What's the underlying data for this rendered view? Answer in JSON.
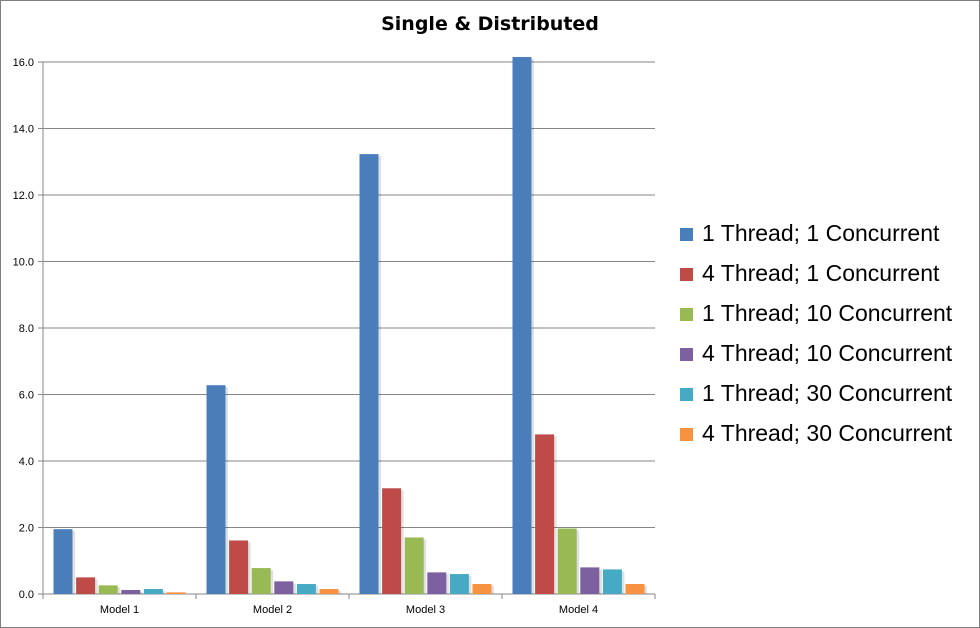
{
  "chart_data": {
    "type": "bar",
    "title": "Single & Distributed",
    "xlabel": "",
    "ylabel": "",
    "categories": [
      "Model 1",
      "Model 2",
      "Model 3",
      "Model 4"
    ],
    "series": [
      {
        "name": "1 Thread; 1 Concurrent",
        "color": "#4a7ebb",
        "values": [
          1.95,
          6.28,
          13.23,
          16.15
        ]
      },
      {
        "name": "4 Thread; 1 Concurrent",
        "color": "#be4b48",
        "values": [
          0.5,
          1.61,
          3.18,
          4.8
        ]
      },
      {
        "name": "1 Thread; 10 Concurrent",
        "color": "#98b954",
        "values": [
          0.26,
          0.78,
          1.7,
          1.97
        ]
      },
      {
        "name": "4 Thread; 10 Concurrent",
        "color": "#7d60a0",
        "values": [
          0.12,
          0.38,
          0.65,
          0.8
        ]
      },
      {
        "name": "1 Thread; 30 Concurrent",
        "color": "#46aac5",
        "values": [
          0.15,
          0.3,
          0.6,
          0.74
        ]
      },
      {
        "name": "4 Thread; 30 Concurrent",
        "color": "#f69240",
        "values": [
          0.05,
          0.15,
          0.3,
          0.3
        ]
      }
    ],
    "ylim": [
      0,
      16
    ],
    "yticks": [
      "0.0",
      "2.0",
      "4.0",
      "6.0",
      "8.0",
      "10.0",
      "12.0",
      "14.0",
      "16.0"
    ],
    "grid": true,
    "legend_position": "right"
  }
}
